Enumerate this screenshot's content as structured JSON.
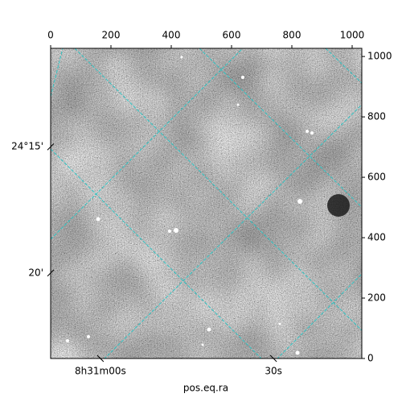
{
  "chart_data": {
    "type": "image",
    "xlabel": "pos.eq.ra",
    "xlim": [
      0,
      1032
    ],
    "ylim": [
      0,
      1027
    ],
    "xticks": [
      0,
      200,
      400,
      600,
      800,
      1000
    ],
    "yticks": [
      0,
      200,
      400,
      600,
      800,
      1000
    ],
    "ra_ticks": [
      {
        "value": 165,
        "label": "8h31m00s"
      },
      {
        "value": 739,
        "label": "30s"
      }
    ],
    "dec_ticks": [
      {
        "value": 701,
        "label": "24°15'"
      },
      {
        "value": 283,
        "label": "20'"
      }
    ]
  }
}
